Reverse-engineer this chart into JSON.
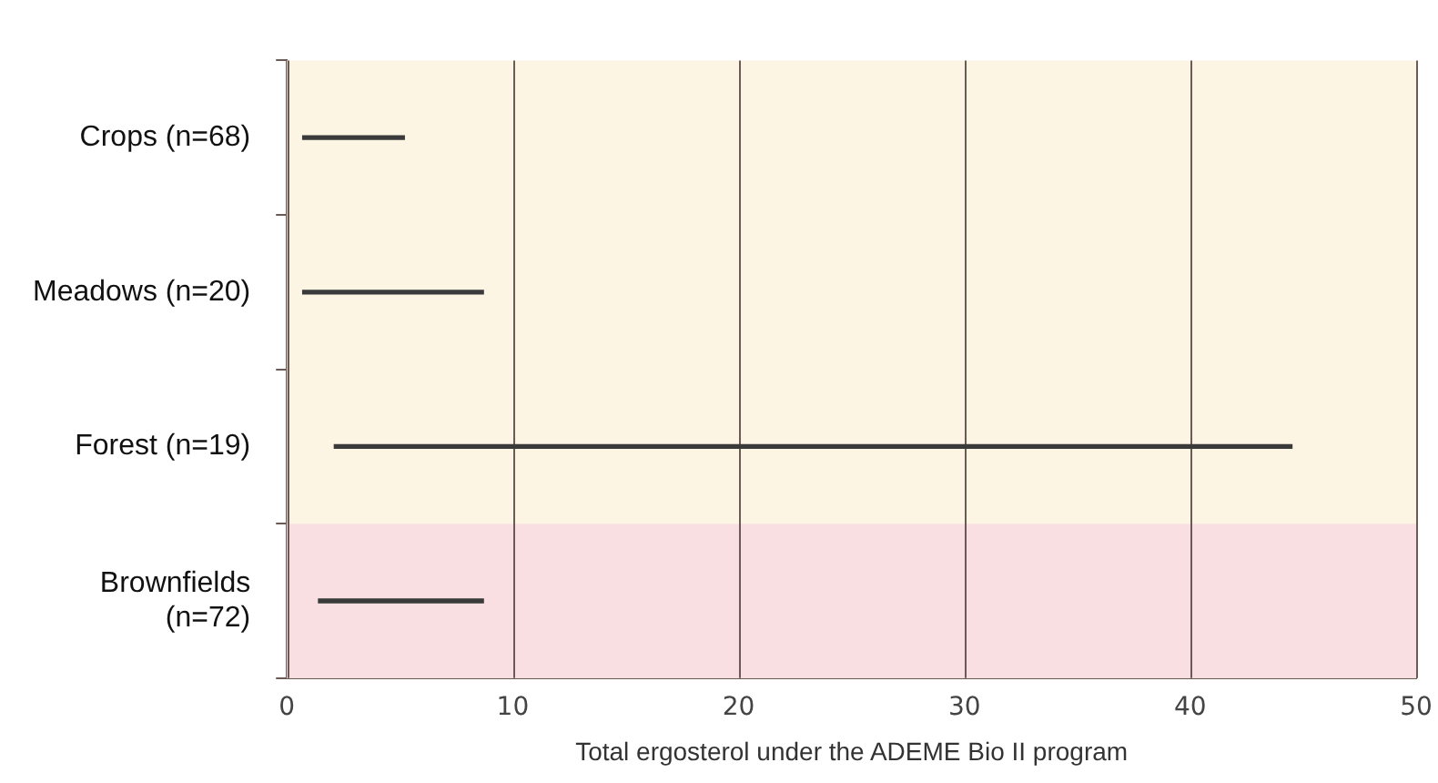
{
  "chart_data": {
    "type": "bar",
    "orientation": "horizontal",
    "xlabel": "Total ergosterol under the ADEME Bio II program",
    "categories": [
      "Crops (n=68)",
      "Meadows (n=20)",
      "Forest (n=19)",
      "Brownfields (n=72)"
    ],
    "base": [
      0.7,
      0.7,
      2.1,
      1.4
    ],
    "values": [
      4.5,
      8.0,
      42.4,
      7.3
    ],
    "color": "#3a3a3a",
    "xlim": [
      0,
      50
    ],
    "xticks": [
      0,
      10,
      20,
      30,
      40,
      50
    ],
    "grid": "x",
    "legend": false,
    "bands": [
      {
        "axis": "y",
        "from": "Brownfields (n=72)",
        "to": "Brownfields (n=72)",
        "color": "#f9dfe2"
      }
    ]
  }
}
